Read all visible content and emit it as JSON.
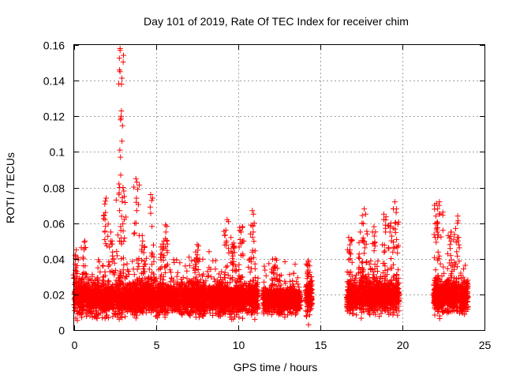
{
  "chart_data": {
    "type": "scatter",
    "title": "Day 101 of 2019, Rate Of TEC Index for receiver chim",
    "xlabel": "GPS time / hours",
    "ylabel": "ROTI / TECUs",
    "xlim": [
      0,
      25
    ],
    "ylim": [
      0,
      0.16
    ],
    "x_ticks": [
      0,
      5,
      10,
      15,
      20,
      25
    ],
    "x_tick_labels": [
      "0",
      "5",
      "10",
      "15",
      "20",
      "25"
    ],
    "y_ticks": [
      0,
      0.02,
      0.04,
      0.06,
      0.08,
      0.1,
      0.12,
      0.14,
      0.16
    ],
    "y_tick_labels": [
      "0",
      "0.02",
      "0.04",
      "0.06",
      "0.08",
      "0.1",
      "0.12",
      "0.14",
      "0.16"
    ],
    "grid": true,
    "marker": "+",
    "marker_color": "#ff0000",
    "series": [
      {
        "name": "ROTI",
        "segments": [
          {
            "start": 0.0,
            "end": 11.2,
            "base": 0.018,
            "spread": 0.012
          },
          {
            "start": 11.5,
            "end": 13.8,
            "base": 0.017,
            "spread": 0.01
          },
          {
            "start": 14.1,
            "end": 14.5,
            "base": 0.018,
            "spread": 0.012
          },
          {
            "start": 16.6,
            "end": 19.8,
            "base": 0.019,
            "spread": 0.012
          },
          {
            "start": 21.9,
            "end": 24.0,
            "base": 0.019,
            "spread": 0.012
          }
        ],
        "peaks": [
          {
            "x": 0.1,
            "y": [
              0.035,
              0.04,
              0.045
            ]
          },
          {
            "x": 0.6,
            "y": [
              0.04,
              0.046,
              0.05
            ]
          },
          {
            "x": 1.9,
            "y": [
              0.055,
              0.062,
              0.066,
              0.074
            ]
          },
          {
            "x": 2.3,
            "y": [
              0.05,
              0.055
            ]
          },
          {
            "x": 2.7,
            "y": [
              0.077,
              0.08,
              0.082
            ]
          },
          {
            "x": 2.85,
            "y": [
              0.087,
              0.097,
              0.101,
              0.106,
              0.118,
              0.123,
              0.138,
              0.145,
              0.157,
              0.158
            ]
          },
          {
            "x": 3.0,
            "y": [
              0.062,
              0.075,
              0.08
            ]
          },
          {
            "x": 3.8,
            "y": [
              0.06,
              0.067,
              0.074,
              0.079,
              0.083,
              0.085
            ]
          },
          {
            "x": 4.2,
            "y": [
              0.05,
              0.053
            ]
          },
          {
            "x": 4.7,
            "y": [
              0.069,
              0.074,
              0.076
            ]
          },
          {
            "x": 5.4,
            "y": [
              0.045,
              0.05
            ]
          },
          {
            "x": 5.6,
            "y": [
              0.05,
              0.055,
              0.059
            ]
          },
          {
            "x": 7.5,
            "y": [
              0.04,
              0.048
            ]
          },
          {
            "x": 9.3,
            "y": [
              0.05,
              0.056,
              0.062
            ]
          },
          {
            "x": 9.6,
            "y": [
              0.048,
              0.052
            ]
          },
          {
            "x": 10.2,
            "y": [
              0.05,
              0.055,
              0.058
            ]
          },
          {
            "x": 10.9,
            "y": [
              0.055,
              0.06,
              0.065,
              0.067
            ]
          },
          {
            "x": 12.2,
            "y": [
              0.035,
              0.04
            ]
          },
          {
            "x": 14.3,
            "y": [
              0.003,
              0.036,
              0.039
            ]
          },
          {
            "x": 16.8,
            "y": [
              0.04,
              0.045,
              0.05,
              0.052
            ]
          },
          {
            "x": 17.5,
            "y": [
              0.05,
              0.055,
              0.06
            ]
          },
          {
            "x": 17.7,
            "y": [
              0.065,
              0.068
            ]
          },
          {
            "x": 18.2,
            "y": [
              0.055,
              0.058
            ]
          },
          {
            "x": 18.9,
            "y": [
              0.055,
              0.062,
              0.065
            ]
          },
          {
            "x": 19.3,
            "y": [
              0.055,
              0.058,
              0.06
            ]
          },
          {
            "x": 19.6,
            "y": [
              0.066,
              0.068,
              0.072
            ]
          },
          {
            "x": 22.1,
            "y": [
              0.052,
              0.055,
              0.06,
              0.064,
              0.068,
              0.071
            ]
          },
          {
            "x": 22.3,
            "y": [
              0.065,
              0.07,
              0.072
            ]
          },
          {
            "x": 22.9,
            "y": [
              0.048,
              0.05,
              0.055
            ]
          },
          {
            "x": 23.3,
            "y": [
              0.052,
              0.057,
              0.064
            ]
          }
        ]
      }
    ]
  }
}
